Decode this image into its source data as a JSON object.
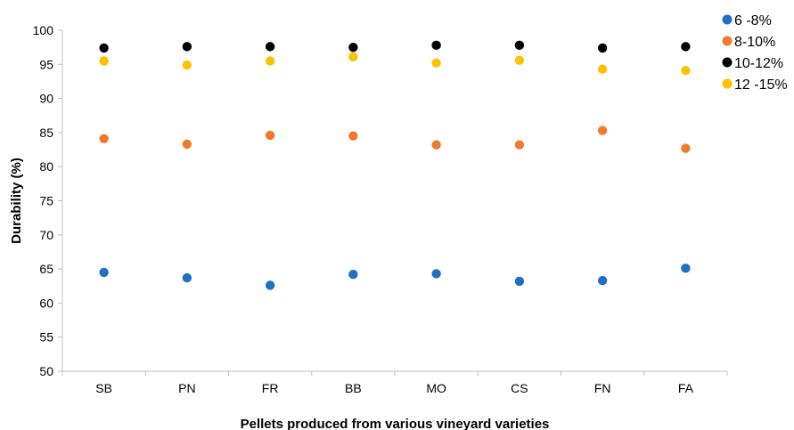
{
  "chart_data": {
    "type": "scatter",
    "title": "",
    "xlabel": "Pellets produced from various vineyard varieties",
    "ylabel": "Durability (%)",
    "categories": [
      "SB",
      "PN",
      "FR",
      "BB",
      "MO",
      "CS",
      "FN",
      "FA"
    ],
    "ylim": [
      50,
      100
    ],
    "yticks": [
      "50",
      "55",
      "60",
      "65",
      "70",
      "75",
      "80",
      "85",
      "90",
      "95",
      "100"
    ],
    "grid": false,
    "legend_position": "top-right",
    "series": [
      {
        "name": "6 -8%",
        "color": "#1f6fc3",
        "values": [
          64.5,
          63.7,
          62.6,
          64.2,
          64.3,
          63.2,
          63.3,
          65.1
        ]
      },
      {
        "name": "8-10%",
        "color": "#f07a2a",
        "values": [
          84.1,
          83.3,
          84.6,
          84.5,
          83.2,
          83.2,
          85.3,
          82.7
        ]
      },
      {
        "name": "10-12%",
        "color": "#000000",
        "values": [
          97.4,
          97.6,
          97.6,
          97.5,
          97.8,
          97.8,
          97.4,
          97.6
        ]
      },
      {
        "name": "12 -15%",
        "color": "#ffc000",
        "values": [
          95.5,
          94.9,
          95.5,
          96.1,
          95.2,
          95.6,
          94.3,
          94.1
        ]
      }
    ]
  }
}
